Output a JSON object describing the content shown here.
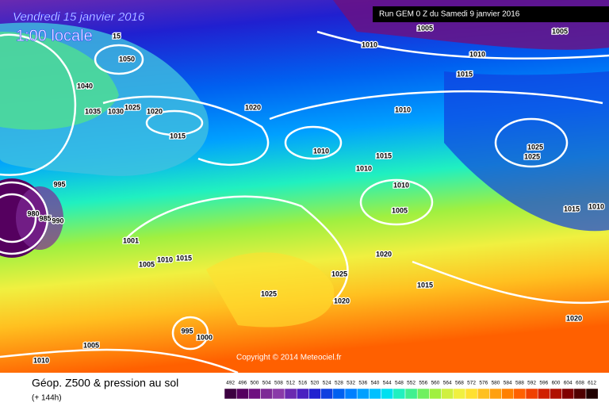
{
  "header": {
    "date": "Vendredi 15 janvier 2016",
    "time": "1:00 locale",
    "run": "Run GEM 0 Z du Samedi 9 janvier 2016"
  },
  "copyright": "Copyright © 2014 Meteociel.fr",
  "legend": {
    "title": "Géop. Z500 & pression au sol",
    "subtitle": "(+ 144h)",
    "scale": [
      492,
      496,
      500,
      504,
      508,
      512,
      516,
      520,
      524,
      528,
      532,
      536,
      540,
      544,
      548,
      552,
      556,
      560,
      564,
      568,
      572,
      576,
      580,
      584,
      588,
      592,
      596,
      600,
      604,
      608,
      612
    ],
    "colors": [
      "#3c0040",
      "#55005f",
      "#6e1080",
      "#7d2a96",
      "#8a3aa8",
      "#6a2ab0",
      "#4a20c0",
      "#2020d0",
      "#1040e0",
      "#0060f0",
      "#0080ff",
      "#00a0ff",
      "#00c0ff",
      "#00e0f0",
      "#20f0c0",
      "#40f090",
      "#70f060",
      "#a0f040",
      "#d0f040",
      "#f0f040",
      "#ffe030",
      "#ffc020",
      "#ffa010",
      "#ff8000",
      "#ff6000",
      "#f04000",
      "#d02000",
      "#b01000",
      "#800000",
      "#500000",
      "#200000"
    ]
  },
  "isobar_labels": [
    "1005",
    "1005",
    "1010",
    "1010",
    "1015",
    "15",
    "1050",
    "1040",
    "1035",
    "1030",
    "1025",
    "1020",
    "1015",
    "1020",
    "1010",
    "1010",
    "1015",
    "1010",
    "1010",
    "1005",
    "1025",
    "1025",
    "995",
    "990",
    "985",
    "980",
    "1015",
    "1010",
    "1001",
    "1005",
    "1010",
    "1015",
    "1020",
    "1025",
    "1015",
    "1025",
    "1020",
    "995",
    "1000",
    "1005",
    "1010",
    "1020"
  ]
}
